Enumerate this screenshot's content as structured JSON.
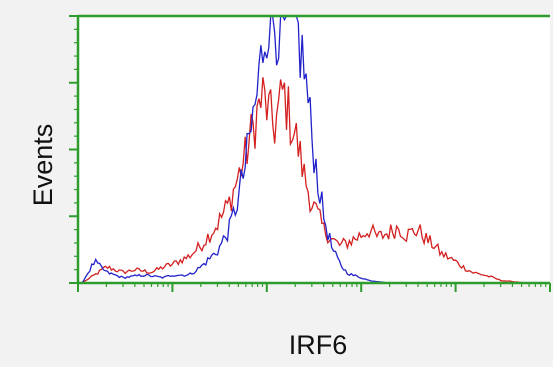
{
  "chart_data": {
    "type": "line",
    "title": "",
    "xlabel": "IRF6",
    "ylabel": "Events",
    "x_scale": "log",
    "xlim": [
      1,
      100000
    ],
    "ylim": [
      0,
      100
    ],
    "legend": "none",
    "grid": false,
    "colors": {
      "axis": "#2e9d2e",
      "background": "#ffffff",
      "page": "#f2f2f2"
    },
    "series": [
      {
        "color": "#d42020",
        "x": [
          1.1,
          1.5,
          2,
          3,
          4,
          6,
          8,
          10,
          15,
          20,
          30,
          40,
          50,
          60,
          70,
          80,
          90,
          100,
          120,
          150,
          180,
          200,
          250,
          300,
          350,
          400,
          500,
          600,
          700,
          800,
          1000,
          1200,
          1500,
          2000,
          2500,
          3000,
          4000,
          5000,
          6000,
          7000,
          8000,
          10000,
          12000,
          15000,
          20000,
          25000,
          30000,
          40000,
          50000,
          70000,
          100000
        ],
        "values": [
          0,
          3,
          6,
          4,
          5,
          4,
          6,
          7,
          10,
          14,
          22,
          30,
          40,
          48,
          57,
          64,
          70,
          66,
          58,
          72,
          60,
          56,
          40,
          30,
          25,
          20,
          16,
          14,
          15,
          16,
          18,
          20,
          17,
          19,
          21,
          18,
          20,
          16,
          14,
          11,
          10,
          8,
          6,
          4,
          3,
          2,
          1,
          0.5,
          0.2,
          0,
          0
        ]
      },
      {
        "color": "#2222cc",
        "x": [
          1.1,
          1.5,
          2,
          3,
          5,
          8,
          10,
          15,
          20,
          30,
          40,
          50,
          60,
          70,
          80,
          90,
          100,
          120,
          150,
          180,
          200,
          250,
          300,
          350,
          400,
          450,
          500,
          600,
          700,
          800,
          1000,
          1200,
          1500,
          2000,
          3000,
          5000,
          10000,
          100000
        ],
        "values": [
          0,
          8,
          4,
          2,
          3,
          2,
          3,
          3,
          6,
          12,
          20,
          32,
          45,
          60,
          72,
          88,
          100,
          100,
          95,
          100,
          98,
          80,
          55,
          38,
          25,
          18,
          12,
          7,
          4,
          3,
          2,
          1,
          0.5,
          0,
          0,
          0,
          0,
          0
        ]
      }
    ]
  }
}
